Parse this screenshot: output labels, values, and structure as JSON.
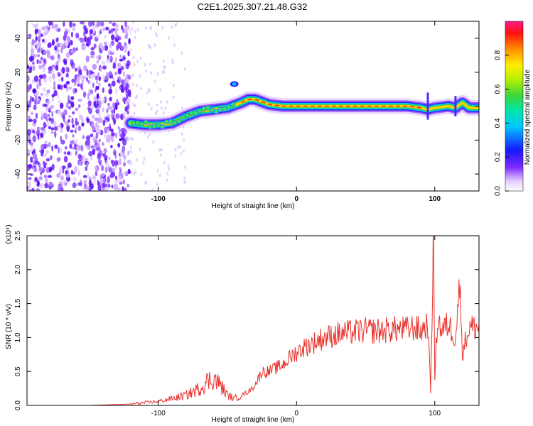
{
  "figure": {
    "title": "C2E1.2025.307.21.48.G32"
  },
  "chart_data": [
    {
      "type": "heatmap",
      "title": "C2E1.2025.307.21.48.G32",
      "xlabel": "Height of straight line (km)",
      "ylabel": "Frequency (Hz)",
      "xlim": [
        -195,
        132
      ],
      "ylim": [
        -50,
        50
      ],
      "x_ticks": [
        -100,
        0,
        100
      ],
      "x_tick_labels": [
        "-100",
        "0",
        "100"
      ],
      "y_ticks": [
        -40,
        -20,
        0,
        20,
        40
      ],
      "y_tick_labels": [
        "-40",
        "-20",
        "0",
        "20",
        "40"
      ],
      "colorbar": {
        "label": "Normalized spectral amplitude",
        "range": [
          0,
          1
        ],
        "ticks": [
          0.0,
          0.2,
          0.4,
          0.6,
          0.8
        ],
        "tick_labels": [
          "0.0",
          "0.2",
          "0.4",
          "0.6",
          "0.8"
        ]
      },
      "ridge": {
        "x": [
          -120,
          -110,
          -100,
          -90,
          -80,
          -70,
          -60,
          -50,
          -40,
          -35,
          -30,
          -20,
          -10,
          0,
          20,
          40,
          60,
          80,
          90,
          95,
          100,
          110,
          115,
          120,
          125,
          132
        ],
        "y": [
          -10,
          -11,
          -11,
          -10,
          -6,
          -3,
          -2,
          -1,
          2,
          4,
          4,
          1,
          0,
          0,
          0,
          0,
          0,
          0,
          -1,
          -2,
          -1,
          0,
          -1,
          2,
          -1,
          -1
        ]
      },
      "noise_region_x": [
        -195,
        -120
      ]
    },
    {
      "type": "line",
      "xlabel": "Height of straight line (km)",
      "ylabel": "SNR (10 * v/v)",
      "y_multiplier": "(x10⁴)",
      "xlim": [
        -195,
        132
      ],
      "ylim": [
        0,
        2.5
      ],
      "x_ticks": [
        -100,
        0,
        100
      ],
      "x_tick_labels": [
        "-100",
        "0",
        "100"
      ],
      "y_ticks": [
        0.0,
        0.5,
        1.0,
        1.5,
        2.0,
        2.5
      ],
      "y_tick_labels": [
        "0.0",
        "0.5",
        "1.0",
        "1.5",
        "2.0",
        "2.5"
      ],
      "series": [
        {
          "name": "SNR",
          "color": "#e8322b",
          "x": [
            -195,
            -150,
            -120,
            -110,
            -100,
            -90,
            -80,
            -70,
            -65,
            -60,
            -55,
            -50,
            -45,
            -40,
            -35,
            -30,
            -25,
            -20,
            -15,
            -10,
            -5,
            0,
            5,
            10,
            15,
            20,
            30,
            40,
            50,
            60,
            70,
            80,
            85,
            90,
            95,
            97,
            99,
            100,
            102,
            105,
            110,
            115,
            118,
            120,
            125,
            132
          ],
          "y": [
            0.0,
            0.0,
            0.02,
            0.04,
            0.06,
            0.1,
            0.15,
            0.25,
            0.35,
            0.4,
            0.3,
            0.15,
            0.1,
            0.15,
            0.2,
            0.3,
            0.5,
            0.5,
            0.55,
            0.6,
            0.7,
            0.78,
            0.85,
            0.9,
            0.95,
            1.0,
            1.05,
            1.08,
            1.1,
            1.1,
            1.12,
            1.12,
            1.15,
            1.1,
            1.2,
            0.2,
            2.5,
            0.4,
            1.3,
            1.1,
            1.2,
            1.0,
            1.8,
            0.8,
            1.15,
            1.15
          ]
        }
      ]
    }
  ]
}
